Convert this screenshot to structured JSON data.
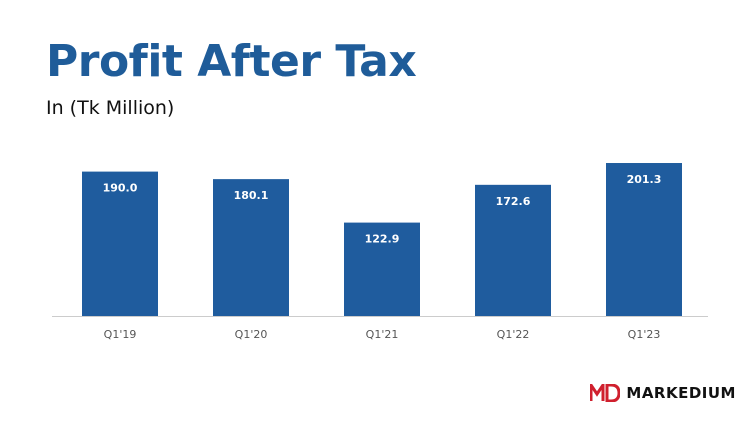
{
  "title": "Profit After Tax",
  "subtitle": "In (Tk Million)",
  "brand": {
    "name": "MARKEDIUM",
    "mark_letters": "MD",
    "mark_color": "#d0202e"
  },
  "colors": {
    "bar": "#1f5c9e",
    "title": "#1f5c99",
    "axis": "#cccccc",
    "tick": "#555555",
    "label": "#ffffff"
  },
  "chart_data": {
    "type": "bar",
    "categories": [
      "Q1'19",
      "Q1'20",
      "Q1'21",
      "Q1'22",
      "Q1'23"
    ],
    "values": [
      190.0,
      180.1,
      122.9,
      172.6,
      201.3
    ],
    "data_labels": [
      "190.0",
      "180.1",
      "122.9",
      "172.6",
      "201.3"
    ],
    "title": "Profit After Tax",
    "subtitle": "In (Tk Million)",
    "xlabel": "",
    "ylabel": "",
    "grid": false,
    "legend": "none"
  }
}
